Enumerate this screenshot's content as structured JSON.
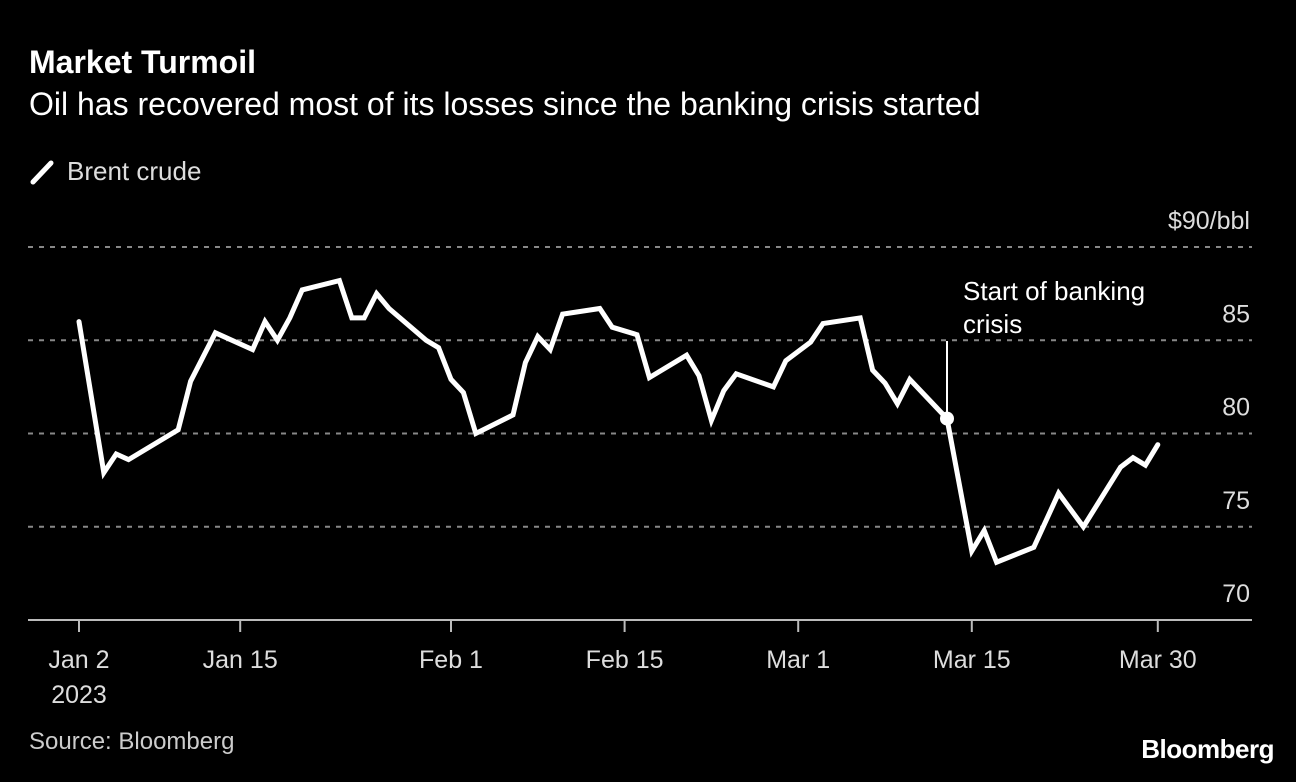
{
  "chart_data": {
    "type": "line",
    "title": "Market Turmoil",
    "subtitle": "Oil has recovered most of its losses since the banking crisis started",
    "xlabel": "",
    "ylabel": "",
    "ylim": [
      70,
      90
    ],
    "xlim": [
      "2023-01-02",
      "2023-03-30"
    ],
    "grid": "horizontal dotted",
    "legend_position": "top-left",
    "y_ticks": [
      {
        "value": 90,
        "label": "$90/bbl"
      },
      {
        "value": 85,
        "label": "85"
      },
      {
        "value": 80,
        "label": "80"
      },
      {
        "value": 75,
        "label": "75"
      },
      {
        "value": 70,
        "label": "70"
      }
    ],
    "x_ticks": [
      {
        "date": "2023-01-02",
        "label": "Jan 2",
        "sublabel": "2023"
      },
      {
        "date": "2023-01-15",
        "label": "Jan 15"
      },
      {
        "date": "2023-02-01",
        "label": "Feb 1"
      },
      {
        "date": "2023-02-15",
        "label": "Feb 15"
      },
      {
        "date": "2023-03-01",
        "label": "Mar 1"
      },
      {
        "date": "2023-03-15",
        "label": "Mar 15"
      },
      {
        "date": "2023-03-30",
        "label": "Mar 30"
      }
    ],
    "series": [
      {
        "name": "Brent crude",
        "color": "#ffffff",
        "points": [
          [
            "2023-01-02",
            86.0
          ],
          [
            "2023-01-04",
            77.9
          ],
          [
            "2023-01-05",
            78.9
          ],
          [
            "2023-01-06",
            78.6
          ],
          [
            "2023-01-10",
            80.2
          ],
          [
            "2023-01-11",
            82.8
          ],
          [
            "2023-01-13",
            85.4
          ],
          [
            "2023-01-16",
            84.5
          ],
          [
            "2023-01-17",
            86.0
          ],
          [
            "2023-01-18",
            85.0
          ],
          [
            "2023-01-19",
            86.2
          ],
          [
            "2023-01-20",
            87.7
          ],
          [
            "2023-01-23",
            88.2
          ],
          [
            "2023-01-24",
            86.2
          ],
          [
            "2023-01-25",
            86.2
          ],
          [
            "2023-01-26",
            87.5
          ],
          [
            "2023-01-27",
            86.7
          ],
          [
            "2023-01-30",
            85.0
          ],
          [
            "2023-01-31",
            84.6
          ],
          [
            "2023-02-01",
            82.9
          ],
          [
            "2023-02-02",
            82.2
          ],
          [
            "2023-02-03",
            80.0
          ],
          [
            "2023-02-06",
            81.0
          ],
          [
            "2023-02-07",
            83.8
          ],
          [
            "2023-02-08",
            85.2
          ],
          [
            "2023-02-09",
            84.5
          ],
          [
            "2023-02-10",
            86.4
          ],
          [
            "2023-02-13",
            86.7
          ],
          [
            "2023-02-14",
            85.7
          ],
          [
            "2023-02-16",
            85.3
          ],
          [
            "2023-02-17",
            83.0
          ],
          [
            "2023-02-20",
            84.2
          ],
          [
            "2023-02-21",
            83.1
          ],
          [
            "2023-02-22",
            80.7
          ],
          [
            "2023-02-23",
            82.3
          ],
          [
            "2023-02-24",
            83.2
          ],
          [
            "2023-02-27",
            82.5
          ],
          [
            "2023-02-28",
            83.9
          ],
          [
            "2023-03-02",
            84.9
          ],
          [
            "2023-03-03",
            85.9
          ],
          [
            "2023-03-06",
            86.2
          ],
          [
            "2023-03-07",
            83.4
          ],
          [
            "2023-03-08",
            82.7
          ],
          [
            "2023-03-09",
            81.6
          ],
          [
            "2023-03-10",
            82.9
          ],
          [
            "2023-03-13",
            80.8
          ],
          [
            "2023-03-15",
            73.7
          ],
          [
            "2023-03-16",
            74.8
          ],
          [
            "2023-03-17",
            73.1
          ],
          [
            "2023-03-20",
            73.9
          ],
          [
            "2023-03-22",
            76.8
          ],
          [
            "2023-03-24",
            75.0
          ],
          [
            "2023-03-27",
            78.2
          ],
          [
            "2023-03-28",
            78.7
          ],
          [
            "2023-03-29",
            78.3
          ],
          [
            "2023-03-30",
            79.4
          ]
        ]
      }
    ],
    "annotations": [
      {
        "date": "2023-03-13",
        "value": 80.8,
        "text_lines": [
          "Start of banking",
          "crisis"
        ]
      }
    ]
  },
  "legend": {
    "label": "Brent crude",
    "icon": "diagonal-line-icon"
  },
  "footer": {
    "source": "Source: Bloomberg",
    "logo": "Bloomberg"
  }
}
